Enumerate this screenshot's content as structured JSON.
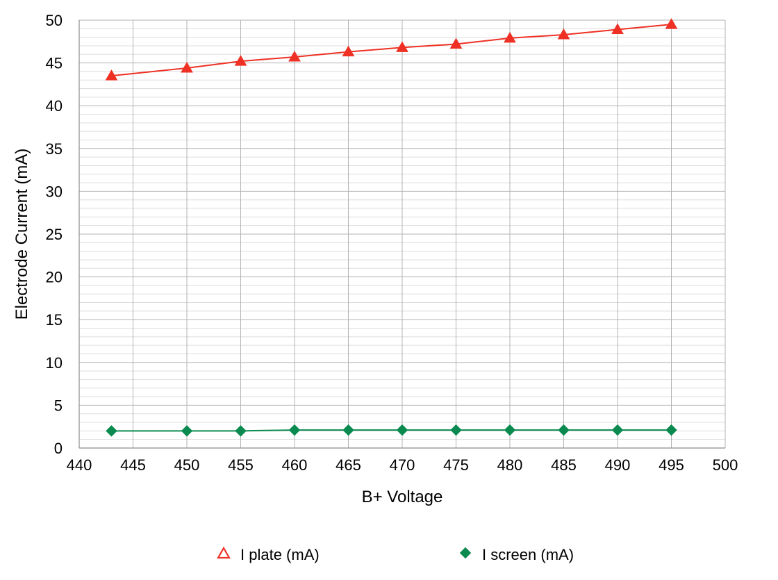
{
  "chart_data": {
    "type": "line",
    "title": "",
    "xlabel": "B+ Voltage",
    "ylabel": "Electrode Current (mA)",
    "xlim": [
      440,
      500
    ],
    "ylim": [
      0,
      50
    ],
    "x_ticks": [
      440,
      445,
      450,
      455,
      460,
      465,
      470,
      475,
      480,
      485,
      490,
      495,
      500
    ],
    "y_ticks": [
      0,
      5,
      10,
      15,
      20,
      25,
      30,
      35,
      40,
      45,
      50
    ],
    "x_major_step": 5,
    "y_major_step": 5,
    "y_minor_step": 1,
    "grid": true,
    "legend_position": "bottom",
    "x": [
      443,
      450,
      455,
      460,
      465,
      470,
      475,
      480,
      485,
      490,
      495
    ],
    "series": [
      {
        "name": "I plate (mA)",
        "values": [
          43.5,
          44.4,
          45.2,
          45.7,
          46.3,
          46.8,
          47.2,
          47.9,
          48.3,
          48.9,
          49.5
        ],
        "color": "#ee3124",
        "marker": "triangle"
      },
      {
        "name": "I screen (mA)",
        "values": [
          2.0,
          2.0,
          2.0,
          2.1,
          2.1,
          2.1,
          2.1,
          2.1,
          2.1,
          2.1,
          2.1
        ],
        "color": "#0a8a4f",
        "marker": "diamond"
      }
    ],
    "gridline_color": "#b3b3b3",
    "minor_gridline_color": "#dddddd"
  }
}
